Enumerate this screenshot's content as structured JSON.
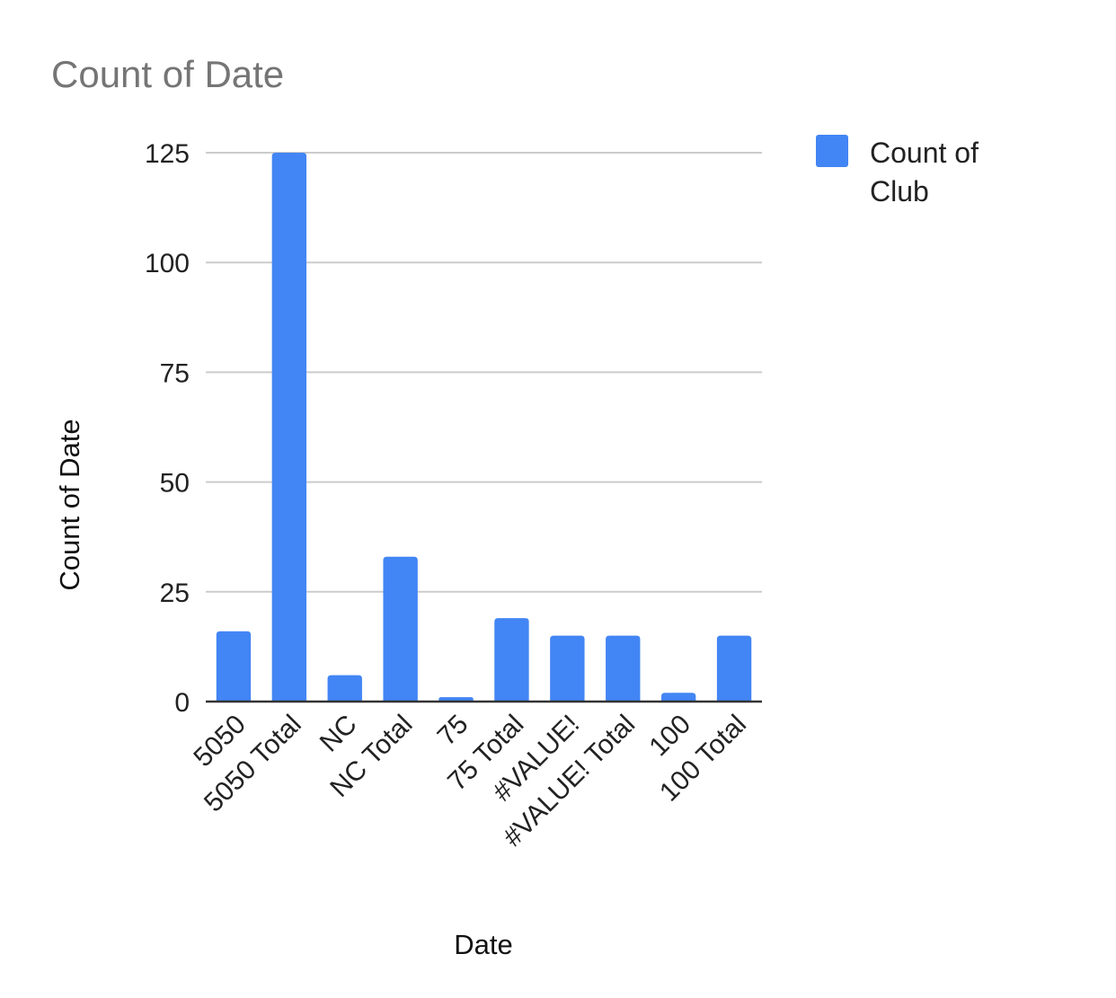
{
  "chart_data": {
    "type": "bar",
    "title": "Count of Date",
    "xlabel": "Date",
    "ylabel": "Count of Date",
    "categories": [
      "5050",
      "5050 Total",
      "NC",
      "NC Total",
      "75",
      "75 Total",
      "#VALUE!",
      "#VALUE! Total",
      "100",
      "100 Total"
    ],
    "series": [
      {
        "name": "Count of Club",
        "values": [
          16,
          125,
          6,
          33,
          1,
          19,
          15,
          15,
          2,
          15
        ],
        "color": "#4285f4"
      }
    ],
    "ylim": [
      0,
      125
    ],
    "yticks": [
      "0",
      "25",
      "50",
      "75",
      "100",
      "125"
    ],
    "grid": true,
    "legend": {
      "position": "right",
      "label_lines": [
        "Count of",
        "Club"
      ]
    },
    "colors": {
      "bar": "#4285f4",
      "grid": "#cccccc",
      "axis": "#333333",
      "title": "#757575"
    }
  }
}
